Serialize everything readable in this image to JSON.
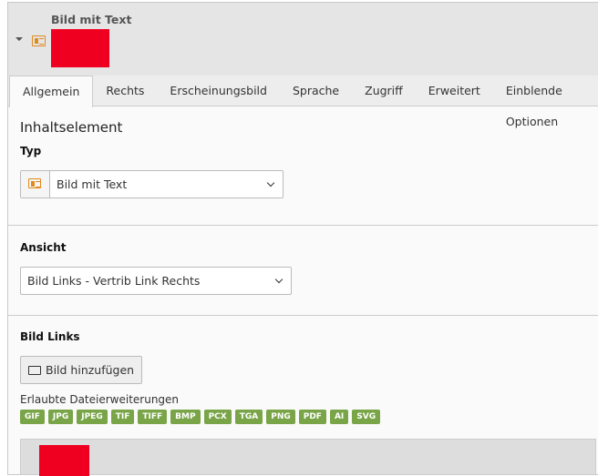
{
  "header": {
    "title": "Bild mit Text",
    "icon": "content-textpic-icon",
    "thumb_color": "#f00020"
  },
  "tabs": [
    {
      "label": "Allgemein",
      "active": true
    },
    {
      "label": "Rechts"
    },
    {
      "label": "Erscheinungsbild"
    },
    {
      "label": "Sprache"
    },
    {
      "label": "Zugriff"
    },
    {
      "label": "Erweitert"
    },
    {
      "label": "Einblende Optionen"
    }
  ],
  "section1": {
    "heading": "Inhaltselement",
    "type_label": "Typ",
    "type_value": "Bild mit Text"
  },
  "section2": {
    "label": "Ansicht",
    "value": "Bild Links - Vertrib Link Rechts"
  },
  "section3": {
    "label": "Bild Links",
    "add_button": "Bild hinzufügen",
    "allowed_label": "Erlaubte Dateierweiterungen",
    "extensions": [
      "GIF",
      "JPG",
      "JPEG",
      "TIF",
      "TIFF",
      "BMP",
      "PCX",
      "TGA",
      "PNG",
      "PDF",
      "AI",
      "SVG"
    ],
    "ext_color": "#79a548"
  }
}
